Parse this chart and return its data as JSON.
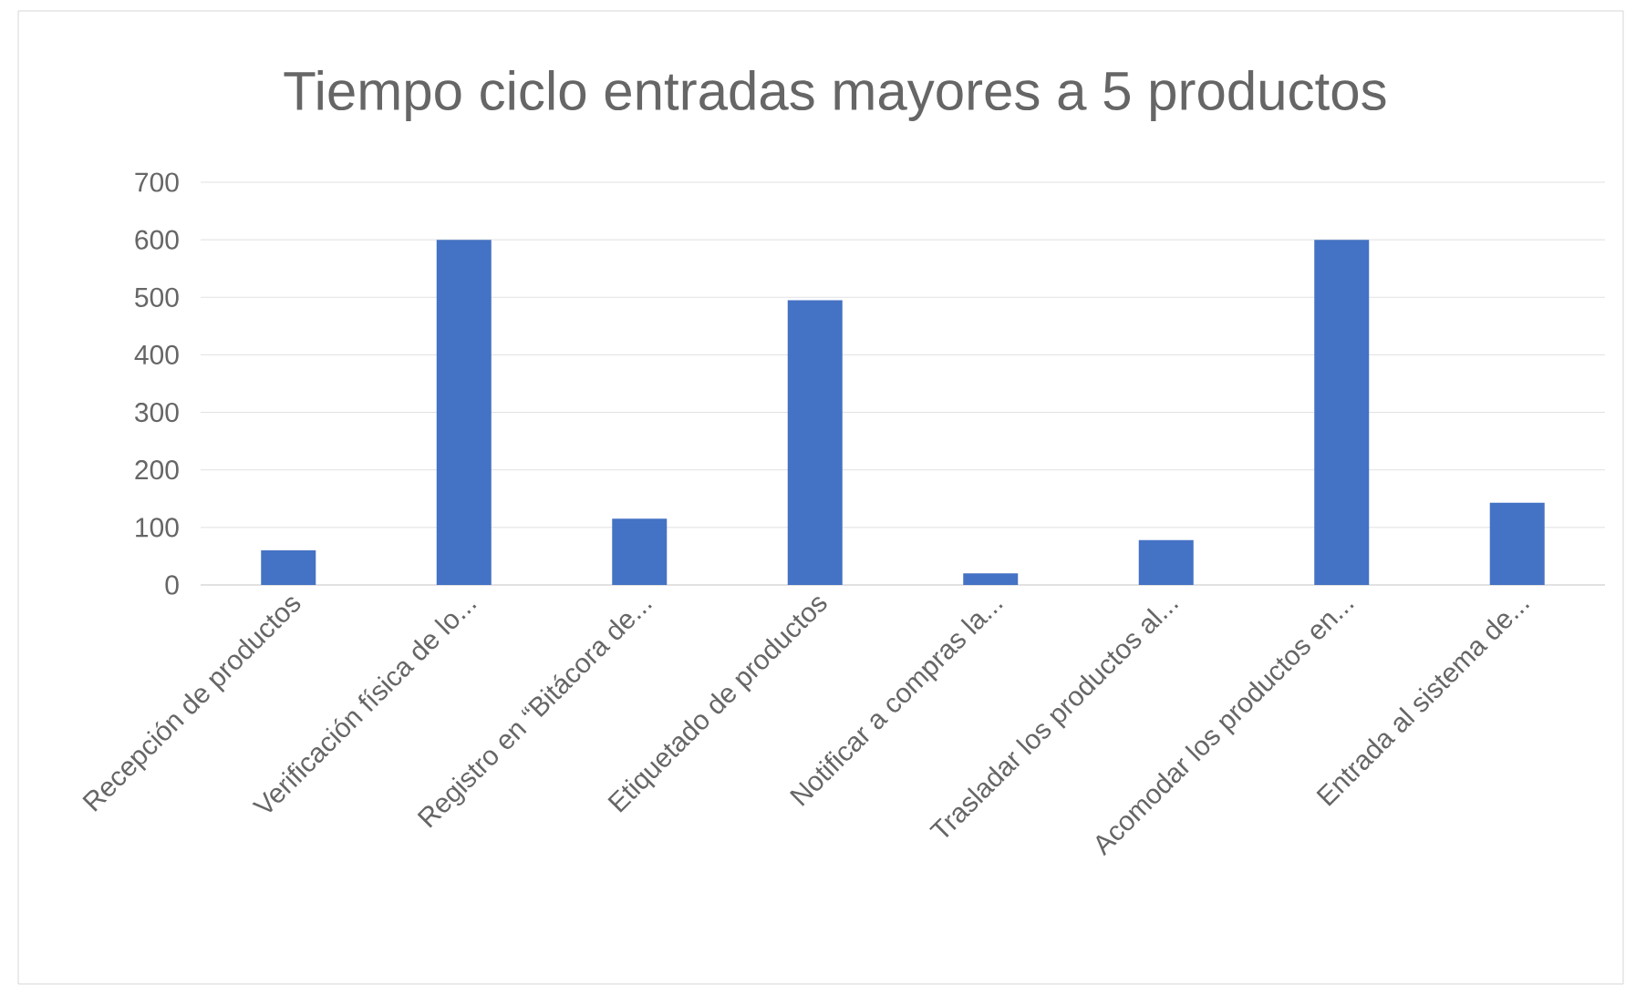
{
  "chart_data": {
    "type": "bar",
    "title": "Tiempo ciclo entradas mayores a 5 productos",
    "categories": [
      "Recepción de productos",
      "Verificación física de lo...",
      "Registro en “Bitácora de...",
      "Etiquetado de productos",
      "Notificar a compras la...",
      "Trasladar los productos al...",
      "Acomodar los productos en...",
      "Entrada al sistema de..."
    ],
    "values": [
      60,
      600,
      115,
      495,
      20,
      78,
      600,
      143
    ],
    "color": "#4472c4",
    "ylim": [
      0,
      700
    ],
    "yticks": [
      0,
      100,
      200,
      300,
      400,
      500,
      600,
      700
    ],
    "grid": "y"
  }
}
